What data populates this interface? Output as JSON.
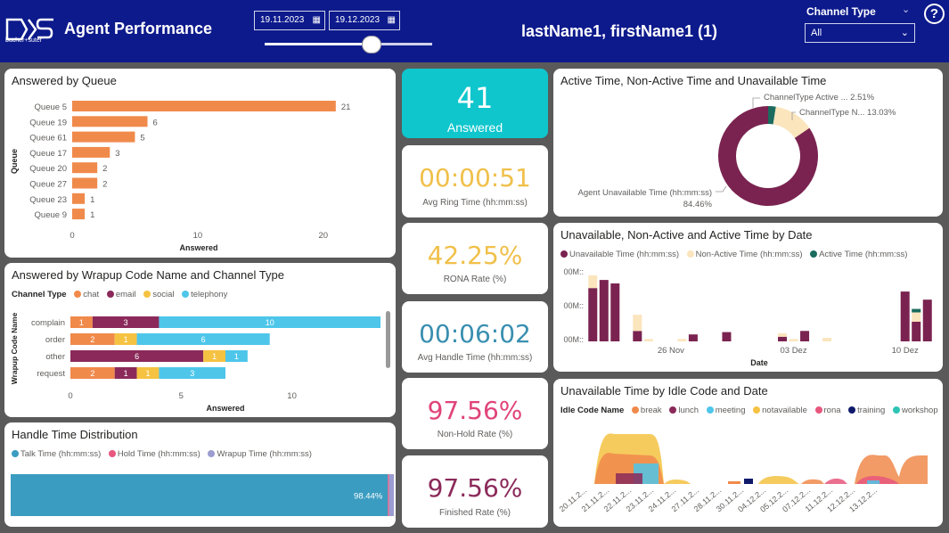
{
  "header": {
    "app_title": "Agent Performance",
    "logo_text": "bucher+suter",
    "date_start": "19.11.2023",
    "date_end": "19.12.2023",
    "slider_position": 0.64,
    "agent_name": "lastName1, firstName1 (1)",
    "channel_type_label": "Channel Type",
    "channel_type_value": "All",
    "help_label": "?"
  },
  "colors": {
    "header_bg": "#0d1a8c",
    "chat": "#f08a4b",
    "email": "#8b2a5a",
    "social": "#f5c242",
    "telephony": "#4ec6ea",
    "unavailable": "#7a2350",
    "nonactive": "#fbe5bd",
    "active": "#1b6b5e",
    "talk": "#3a9cc0",
    "hold": "#e8577d",
    "wrapup": "#9b9ccf"
  },
  "answered_by_queue": {
    "title": "Answered by Queue",
    "y_label": "Queue",
    "x_label": "Answered",
    "queues": [
      "Queue 5",
      "Queue 19",
      "Queue 61",
      "Queue 17",
      "Queue 20",
      "Queue 27",
      "Queue 23",
      "Queue 9"
    ],
    "values": [
      21,
      6,
      5,
      3,
      2,
      2,
      1,
      1
    ],
    "ticks": [
      "0",
      "10",
      "20"
    ],
    "tick_values": [
      0,
      10,
      20
    ],
    "x_max": 23
  },
  "wrapup": {
    "title": "Answered by Wrapup Code Name and Channel Type",
    "legend_title": "Channel Type",
    "legend": [
      "chat",
      "email",
      "social",
      "telephony"
    ],
    "y_label": "Wrapup Code Name",
    "x_label": "Answered",
    "rows": [
      {
        "name": "complain",
        "segments": [
          {
            "c": "chat",
            "v": 1,
            "label": "1"
          },
          {
            "c": "email",
            "v": 3,
            "label": "3"
          },
          {
            "c": "telephony",
            "v": 10,
            "label": "10"
          }
        ]
      },
      {
        "name": "order",
        "segments": [
          {
            "c": "chat",
            "v": 2,
            "label": "2"
          },
          {
            "c": "social",
            "v": 1,
            "label": "1"
          },
          {
            "c": "telephony",
            "v": 6,
            "label": "6"
          }
        ]
      },
      {
        "name": "other",
        "segments": [
          {
            "c": "email",
            "v": 6,
            "label": "6"
          },
          {
            "c": "social",
            "v": 1,
            "label": "1"
          },
          {
            "c": "telephony",
            "v": 1,
            "label": "1"
          }
        ]
      },
      {
        "name": "request",
        "segments": [
          {
            "c": "chat",
            "v": 2,
            "label": "2"
          },
          {
            "c": "email",
            "v": 1,
            "label": "1"
          },
          {
            "c": "social",
            "v": 1,
            "label": "1"
          },
          {
            "c": "telephony",
            "v": 3,
            "label": "3"
          }
        ]
      }
    ],
    "ticks": [
      "0",
      "5",
      "10"
    ],
    "tick_values": [
      0,
      5,
      10
    ],
    "x_max": 14
  },
  "handle_time": {
    "title": "Handle Time Distribution",
    "legend": [
      "Talk Time (hh:mm:ss)",
      "Hold Time (hh:mm:ss)",
      "Wrapup Time (hh:mm:ss)"
    ],
    "talk_pct": 98.44,
    "hold_pct": 0.3,
    "wrapup_pct": 1.26,
    "talk_label": "98.44%"
  },
  "kpis": {
    "answered": {
      "value": "41",
      "label": "Answered"
    },
    "ring": {
      "value": "00:00:51",
      "label": "Avg Ring Time (hh:mm:ss)"
    },
    "rona": {
      "value": "42.25%",
      "label": "RONA Rate (%)"
    },
    "handle": {
      "value": "00:06:02",
      "label": "Avg Handle Time (hh:mm:ss)"
    },
    "nonhold": {
      "value": "97.56%",
      "label": "Non-Hold Rate (%)"
    },
    "finished": {
      "value": "97.56%",
      "label": "Finished Rate (%)"
    }
  },
  "donut": {
    "title": "Active Time, Non-Active Time and Unavailable Time",
    "slices": [
      {
        "name": "Agent Unavailable Time (hh:mm:ss)",
        "pct": 84.46,
        "pct_label": "84.46%",
        "color": "#7a2350"
      },
      {
        "name": "ChannelType N...",
        "pct": 13.03,
        "pct_label": "13.03%",
        "color": "#fbe5bd"
      },
      {
        "name": "ChannelType Active ...",
        "pct": 2.51,
        "pct_label": "2.51%",
        "color": "#1b6b5e"
      }
    ]
  },
  "by_date": {
    "title": "Unavailable, Non-Active and Active Time by Date",
    "legend": [
      "Unavailable Time (hh:mm:ss)",
      "Non-Active Time (hh:mm:ss)",
      "Active Time (hh:mm:ss)"
    ],
    "y_ticks": [
      "00M::",
      "00M::",
      "00M::"
    ],
    "x_ticks": [
      "26 Nov",
      "03 Dez",
      "10 Dez"
    ],
    "x_label": "Date",
    "days": [
      {
        "u": 4.6,
        "n": 1.1,
        "a": 0
      },
      {
        "u": 5.3,
        "n": 0,
        "a": 0
      },
      {
        "u": 5.0,
        "n": 0,
        "a": 0
      },
      {
        "u": 0,
        "n": 0,
        "a": 0
      },
      {
        "u": 0.9,
        "n": 1.4,
        "a": 0
      },
      {
        "u": 0,
        "n": 0.2,
        "a": 0
      },
      {
        "u": 0,
        "n": 0,
        "a": 0
      },
      {
        "u": 0,
        "n": 0,
        "a": 0
      },
      {
        "u": 0,
        "n": 0.2,
        "a": 0
      },
      {
        "u": 0.6,
        "n": 0,
        "a": 0
      },
      {
        "u": 0,
        "n": 0,
        "a": 0
      },
      {
        "u": 0,
        "n": 0,
        "a": 0
      },
      {
        "u": 0.8,
        "n": 0,
        "a": 0
      },
      {
        "u": 0,
        "n": 0,
        "a": 0
      },
      {
        "u": 0,
        "n": 0,
        "a": 0
      },
      {
        "u": 0,
        "n": 0,
        "a": 0
      },
      {
        "u": 0,
        "n": 0,
        "a": 0
      },
      {
        "u": 0.4,
        "n": 0.3,
        "a": 0
      },
      {
        "u": 0,
        "n": 0.2,
        "a": 0
      },
      {
        "u": 0.9,
        "n": 0,
        "a": 0
      },
      {
        "u": 0,
        "n": 0,
        "a": 0
      },
      {
        "u": 0,
        "n": 0.3,
        "a": 0
      },
      {
        "u": 0,
        "n": 0,
        "a": 0
      },
      {
        "u": 0,
        "n": 0,
        "a": 0
      },
      {
        "u": 0,
        "n": 0,
        "a": 0
      },
      {
        "u": 0,
        "n": 0,
        "a": 0
      },
      {
        "u": 0,
        "n": 0,
        "a": 0
      },
      {
        "u": 0,
        "n": 0,
        "a": 0
      },
      {
        "u": 4.3,
        "n": 0,
        "a": 0
      },
      {
        "u": 1.7,
        "n": 0.8,
        "a": 0.3
      },
      {
        "u": 3.6,
        "n": 0,
        "a": 0
      }
    ],
    "y_max": 6
  },
  "idle": {
    "title": "Unavailable Time by Idle Code and Date",
    "legend_title": "Idle Code Name",
    "legend": [
      {
        "name": "break",
        "color": "#f08a4b"
      },
      {
        "name": "lunch",
        "color": "#8b2a5a"
      },
      {
        "name": "meeting",
        "color": "#4ec6ea"
      },
      {
        "name": "notavailable",
        "color": "#f5c242"
      },
      {
        "name": "rona",
        "color": "#e8577d"
      },
      {
        "name": "training",
        "color": "#0f1a6b"
      },
      {
        "name": "workshop",
        "color": "#2ec4b6"
      }
    ],
    "x_ticks": [
      "20.11.2...",
      "21.11.2...",
      "22.11.2...",
      "23.11.2...",
      "24.11.2...",
      "27.11.2...",
      "28.11.2...",
      "30.11.2...",
      "04.12.2...",
      "05.12.2...",
      "07.12.2...",
      "11.12.2...",
      "12.12.2...",
      "13.12.2..."
    ]
  }
}
